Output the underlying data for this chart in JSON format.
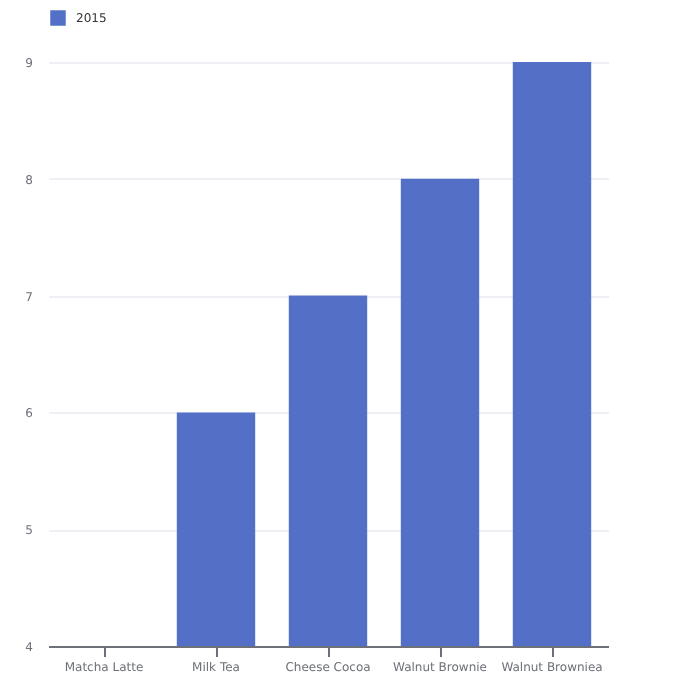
{
  "chart_data": {
    "type": "bar",
    "categories": [
      "Matcha Latte",
      "Milk Tea",
      "Cheese Cocoa",
      "Walnut Brownie",
      "Walnut Browniea"
    ],
    "series": [
      {
        "name": "2015",
        "color": "#5470c6",
        "values": [
          null,
          6,
          7,
          8,
          9
        ]
      }
    ],
    "ylim": [
      4,
      9
    ],
    "yticks": [
      4,
      5,
      6,
      7,
      8,
      9
    ],
    "grid": "y",
    "legend": "top"
  }
}
